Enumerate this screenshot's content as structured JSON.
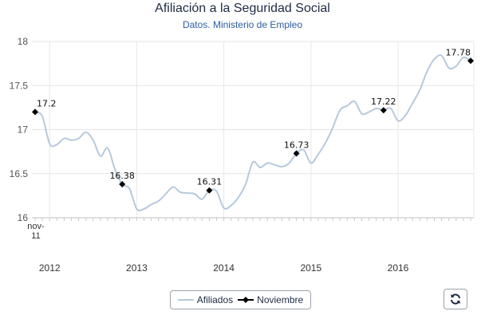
{
  "chart_data": {
    "type": "line",
    "title": "Afiliación a la Seguridad Social",
    "subtitle": "Datos. Ministerio de Empleo",
    "xlabel": "",
    "ylabel": "",
    "ylim": [
      16,
      18
    ],
    "y_ticks": [
      "16",
      "16.5",
      "17",
      "17.5",
      "18"
    ],
    "x_ticks": [
      "2012",
      "2013",
      "2014",
      "2015",
      "2016"
    ],
    "x_start_label": [
      "nov-",
      "11"
    ],
    "grid": true,
    "legend": "bottom-center",
    "series": [
      {
        "name": "Afiliados",
        "color": "#b7c9dc",
        "x": [
          "2011-11",
          "2011-12",
          "2012-01",
          "2012-02",
          "2012-03",
          "2012-04",
          "2012-05",
          "2012-06",
          "2012-07",
          "2012-08",
          "2012-09",
          "2012-10",
          "2012-11",
          "2012-12",
          "2013-01",
          "2013-02",
          "2013-03",
          "2013-04",
          "2013-05",
          "2013-06",
          "2013-07",
          "2013-08",
          "2013-09",
          "2013-10",
          "2013-11",
          "2013-12",
          "2014-01",
          "2014-02",
          "2014-03",
          "2014-04",
          "2014-05",
          "2014-06",
          "2014-07",
          "2014-08",
          "2014-09",
          "2014-10",
          "2014-11",
          "2014-12",
          "2015-01",
          "2015-02",
          "2015-03",
          "2015-04",
          "2015-05",
          "2015-06",
          "2015-07",
          "2015-08",
          "2015-09",
          "2015-10",
          "2015-11",
          "2015-12",
          "2016-01",
          "2016-02",
          "2016-03",
          "2016-04",
          "2016-05",
          "2016-06",
          "2016-07",
          "2016-08",
          "2016-09",
          "2016-10",
          "2016-11"
        ],
        "values": [
          17.2,
          17.15,
          16.84,
          16.83,
          16.9,
          16.88,
          16.9,
          16.97,
          16.88,
          16.7,
          16.79,
          16.55,
          16.38,
          16.33,
          16.1,
          16.1,
          16.15,
          16.19,
          16.27,
          16.35,
          16.29,
          16.28,
          16.27,
          16.21,
          16.31,
          16.3,
          16.11,
          16.14,
          16.23,
          16.38,
          16.63,
          16.57,
          16.62,
          16.6,
          16.58,
          16.62,
          16.73,
          16.77,
          16.62,
          16.72,
          16.85,
          17.02,
          17.22,
          17.27,
          17.32,
          17.18,
          17.2,
          17.24,
          17.22,
          17.24,
          17.1,
          17.16,
          17.3,
          17.45,
          17.66,
          17.8,
          17.84,
          17.7,
          17.72,
          17.82,
          17.78
        ]
      },
      {
        "name": "Noviembre",
        "color": "#000000",
        "x": [
          "2011-11",
          "2012-11",
          "2013-11",
          "2014-11",
          "2015-11",
          "2016-11"
        ],
        "values": [
          17.2,
          16.38,
          16.31,
          16.73,
          17.22,
          17.78
        ],
        "labels": [
          "17.2",
          "16.38",
          "16.31",
          "16.73",
          "17.22",
          "17.78"
        ]
      }
    ]
  }
}
